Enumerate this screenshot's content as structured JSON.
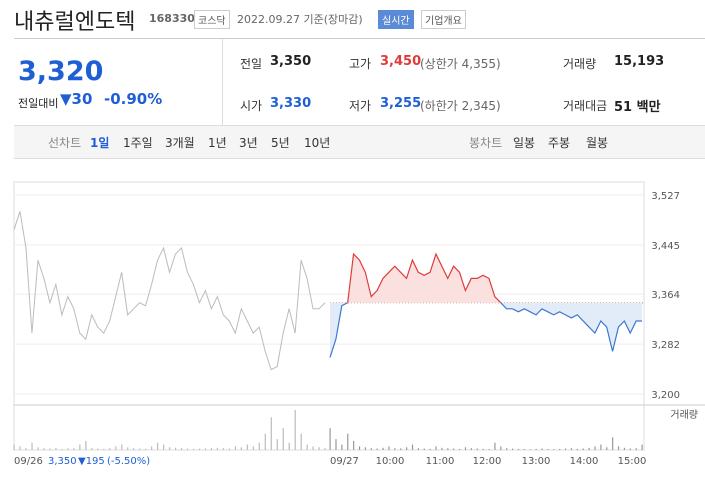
{
  "header": {
    "name": "내츄럴엔도텍",
    "code": "168330",
    "market": "코스닥",
    "date": "2022.09.27 기준(장마감)",
    "realtime": "실시간",
    "company_button": "기업개요"
  },
  "quote": {
    "price": "3,320",
    "change_label": "전일대비",
    "change": "▼30",
    "change_pct": "-0.90%"
  },
  "info": [
    {
      "label": "전일",
      "value": "3,350"
    },
    {
      "label": "고가",
      "value": "3,450",
      "note": "(상한가 4,355)"
    },
    {
      "label": "거래량",
      "value": "15,193"
    },
    {
      "label": "시가",
      "value": "3,330"
    },
    {
      "label": "저가",
      "value": "3,255",
      "note": "(하한가 2,345)"
    },
    {
      "label": "거래대금",
      "value": "51 백만"
    }
  ],
  "tabs": {
    "line_label": "선차트",
    "line": [
      "1일",
      "1주일",
      "3개월",
      "1년",
      "3년",
      "5년",
      "10년"
    ],
    "candle_label": "봉차트",
    "candle": [
      "일봉",
      "주봉",
      "월봉"
    ]
  },
  "chart_data": {
    "type": "line",
    "ylim": [
      3200,
      3527
    ],
    "yticks": [
      {
        "value": 3527,
        "label": "3,527"
      },
      {
        "value": 3445,
        "label": "3,445"
      },
      {
        "value": 3364,
        "label": "3,364"
      },
      {
        "value": 3282,
        "label": "3,282"
      },
      {
        "value": 3200,
        "label": "3,200"
      }
    ],
    "reference": 3350,
    "volume_label": "거래량",
    "x_labels": [
      "09/26",
      "09/27",
      "10:00",
      "11:00",
      "12:00",
      "13:00",
      "14:00",
      "15:00"
    ],
    "prev_summary": {
      "close": "3,350",
      "change": "▼195",
      "pct": "(-5.50%)"
    },
    "prev": {
      "color": "#bbbbbb",
      "values": [
        3470,
        3500,
        3440,
        3300,
        3420,
        3390,
        3350,
        3380,
        3330,
        3360,
        3340,
        3300,
        3290,
        3330,
        3310,
        3300,
        3320,
        3360,
        3400,
        3330,
        3340,
        3350,
        3345,
        3380,
        3420,
        3440,
        3400,
        3430,
        3440,
        3400,
        3380,
        3350,
        3370,
        3340,
        3360,
        3330,
        3320,
        3300,
        3340,
        3320,
        3300,
        3310,
        3270,
        3240,
        3245,
        3300,
        3340,
        3300,
        3420,
        3390,
        3340,
        3340,
        3350
      ],
      "volume": [
        300,
        200,
        100,
        400,
        150,
        100,
        80,
        120,
        60,
        90,
        100,
        300,
        500,
        120,
        80,
        60,
        100,
        200,
        300,
        150,
        100,
        80,
        60,
        200,
        400,
        300,
        150,
        120,
        100,
        80,
        60,
        70,
        90,
        100,
        120,
        100,
        80,
        200,
        150,
        300,
        200,
        400,
        900,
        1800,
        600,
        1200,
        400,
        2200,
        900,
        300,
        200,
        150,
        100
      ]
    },
    "today": {
      "up_color": "#e03b3b",
      "down_color": "#3b78d0",
      "values": [
        3260,
        3290,
        3345,
        3350,
        3430,
        3420,
        3400,
        3360,
        3370,
        3390,
        3400,
        3410,
        3400,
        3390,
        3420,
        3400,
        3395,
        3400,
        3430,
        3410,
        3390,
        3410,
        3400,
        3370,
        3390,
        3390,
        3395,
        3390,
        3360,
        3350,
        3340,
        3340,
        3335,
        3340,
        3335,
        3330,
        3340,
        3335,
        3330,
        3335,
        3330,
        3325,
        3330,
        3320,
        3310,
        3300,
        3320,
        3310,
        3270,
        3310,
        3320,
        3300,
        3320,
        3320
      ],
      "volume": [
        1200,
        600,
        300,
        900,
        500,
        200,
        150,
        100,
        80,
        120,
        200,
        100,
        90,
        150,
        300,
        100,
        80,
        60,
        200,
        120,
        100,
        80,
        60,
        150,
        100,
        80,
        60,
        50,
        400,
        200,
        100,
        80,
        60,
        50,
        40,
        60,
        80,
        50,
        40,
        60,
        80,
        100,
        60,
        80,
        120,
        200,
        300,
        150,
        700,
        200,
        120,
        80,
        100,
        300
      ]
    }
  }
}
